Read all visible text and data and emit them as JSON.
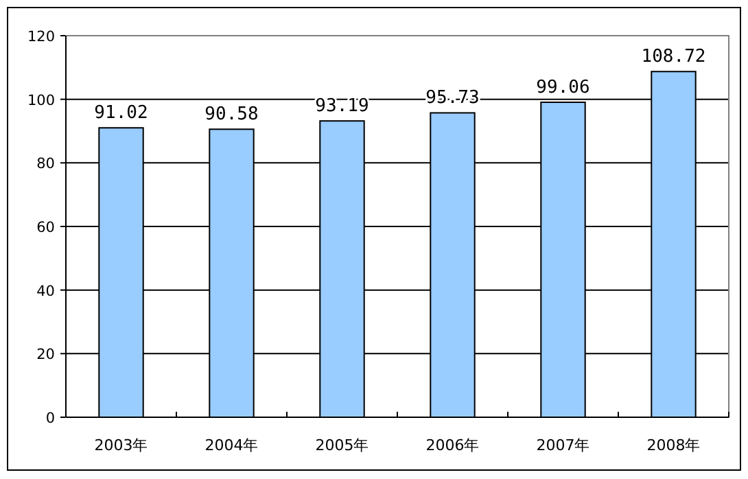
{
  "chart_data": {
    "type": "bar",
    "categories": [
      "2003年",
      "2004年",
      "2005年",
      "2006年",
      "2007年",
      "2008年"
    ],
    "values": [
      91.02,
      90.58,
      93.19,
      95.73,
      99.06,
      108.72
    ],
    "color": "#99ccff",
    "ylim": [
      0,
      120
    ],
    "yticks": [
      0,
      20,
      40,
      60,
      80,
      100,
      120
    ],
    "grid": "y",
    "data_labels": true
  }
}
